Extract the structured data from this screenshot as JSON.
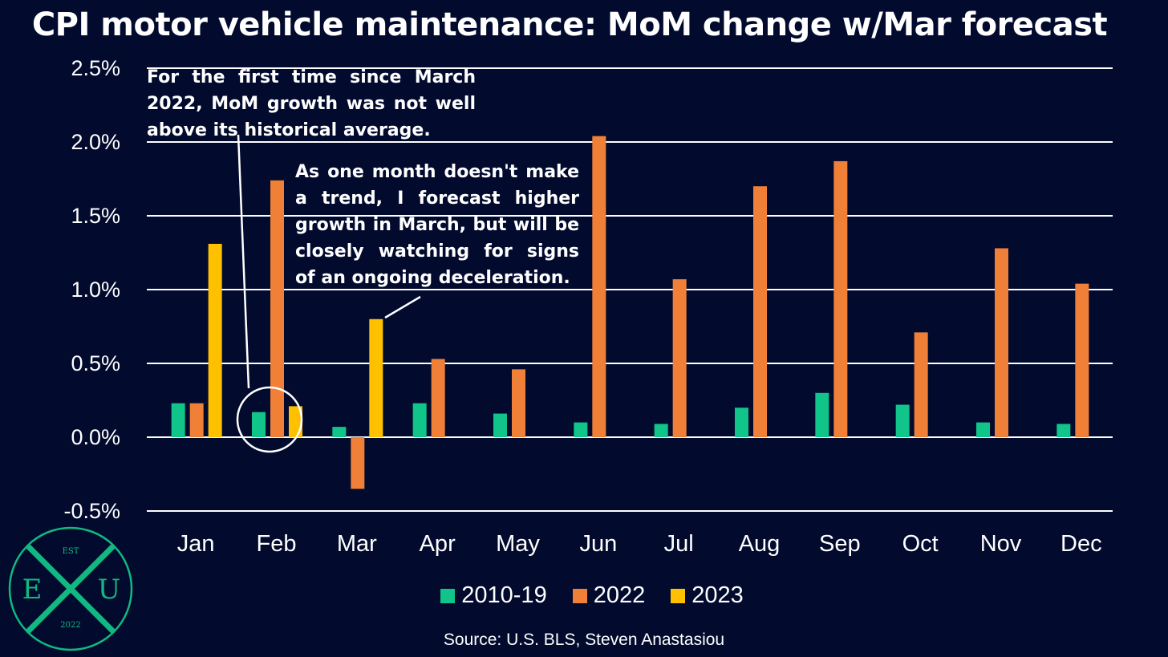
{
  "title": "CPI motor vehicle maintenance: MoM change w/Mar forecast",
  "annotations": {
    "first": "For the first time since March 2022, MoM growth was not well above its historical average.",
    "second": "As one month doesn't make a trend, I forecast higher growth in March, but will be closely watching for signs of an ongoing deceleration."
  },
  "source": "Source: U.S. BLS, Steven Anastasiou",
  "logo": {
    "top": "EST",
    "left": "E",
    "right": "U",
    "bottom": "2022",
    "color": "#10b981"
  },
  "chart_data": {
    "type": "bar",
    "title": "CPI motor vehicle maintenance: MoM change w/Mar forecast",
    "xlabel": "",
    "ylabel": "",
    "categories": [
      "Jan",
      "Feb",
      "Mar",
      "Apr",
      "May",
      "Jun",
      "Jul",
      "Aug",
      "Sep",
      "Oct",
      "Nov",
      "Dec"
    ],
    "series": [
      {
        "name": "2010-19",
        "color": "#10c48a",
        "values": [
          0.23,
          0.17,
          0.07,
          0.23,
          0.16,
          0.1,
          0.09,
          0.2,
          0.3,
          0.22,
          0.1,
          0.09
        ]
      },
      {
        "name": "2022",
        "color": "#f07f38",
        "values": [
          0.23,
          1.74,
          -0.35,
          0.53,
          0.46,
          2.04,
          1.07,
          1.7,
          1.87,
          0.71,
          1.28,
          1.04
        ]
      },
      {
        "name": "2023",
        "color": "#ffc000",
        "values": [
          1.31,
          0.21,
          0.8,
          null,
          null,
          null,
          null,
          null,
          null,
          null,
          null,
          null
        ]
      }
    ],
    "ylim": [
      -0.5,
      2.5
    ],
    "yticks": [
      2.5,
      2.0,
      1.5,
      1.0,
      0.5,
      0.0,
      -0.5
    ],
    "ytick_labels": [
      "2.5%",
      "2.0%",
      "1.5%",
      "1.0%",
      "0.5%",
      "0.0%",
      "-0.5%"
    ],
    "grid": true,
    "legend_position": "bottom"
  }
}
